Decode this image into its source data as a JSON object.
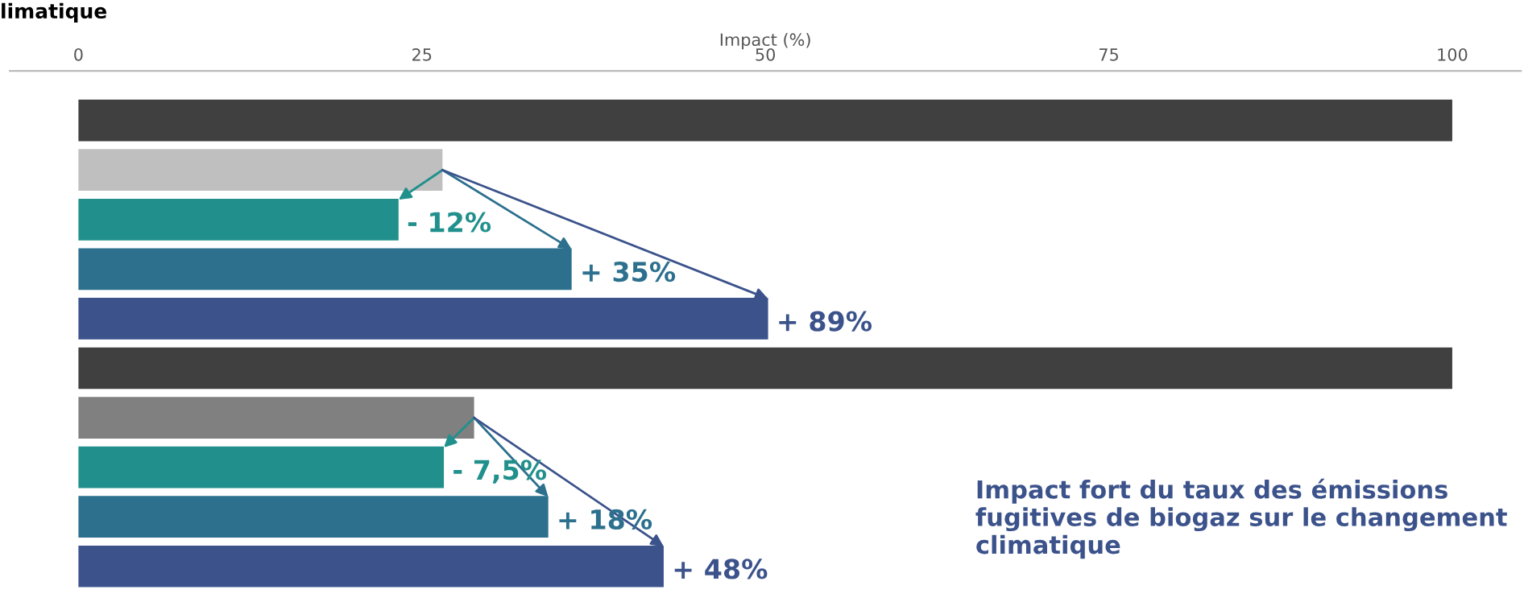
{
  "chart_data": {
    "type": "bar",
    "orientation": "horizontal",
    "title": "limatique",
    "xlabel": "Impact (%)",
    "categories": [
      null,
      null,
      null,
      null,
      null,
      null,
      null,
      null,
      null,
      null
    ],
    "values": [
      100,
      26.5,
      23.3,
      35.9,
      50.2,
      100,
      28.8,
      26.6,
      34.2,
      42.6
    ],
    "colors": [
      "#404040",
      "#bfbfbf",
      "#21908c",
      "#2c708e",
      "#3b528b",
      "#404040",
      "#808080",
      "#21908c",
      "#2c708e",
      "#3b528b"
    ],
    "xlim": [
      -5,
      105
    ],
    "xticks": [
      0,
      25,
      50,
      75,
      100
    ],
    "grid": false,
    "legend": false,
    "annotations": [
      {
        "text": "- 12%",
        "x": 23.3
      },
      {
        "text": "+ 35%",
        "x": 35.9
      },
      {
        "text": "+ 89%",
        "x": 50.2
      },
      {
        "text": "- 7,5%",
        "x": 26.6
      },
      {
        "text": "+ 18%",
        "x": 34.2
      },
      {
        "text": "+ 48%",
        "x": 42.6
      },
      "Impact fort du taux des émissions fugitives de biogaz sur le changement climatique"
    ]
  }
}
